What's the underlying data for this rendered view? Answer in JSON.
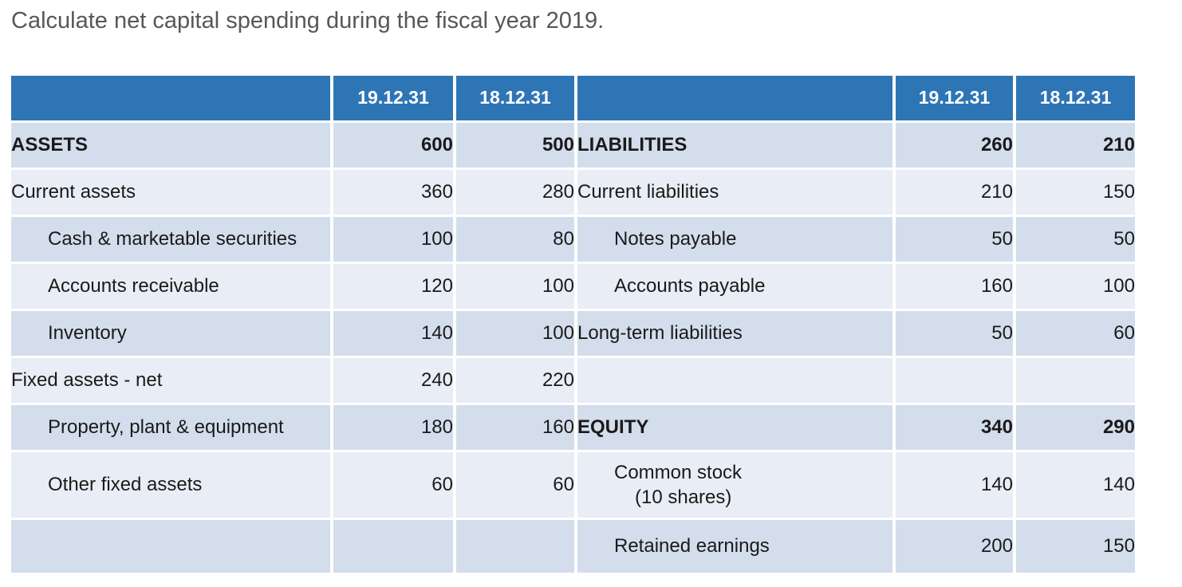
{
  "page": {
    "title": "Calculate net capital spending during the fiscal year 2019."
  },
  "colors": {
    "header_bg": "#2E75B6",
    "band_dark": "#D3DDEC",
    "band_light": "#E9EDF5",
    "header_text": "#FFFFFF",
    "body_text": "#1A1A1A",
    "title_text": "#56575A",
    "grid_border": "#FFFFFF"
  },
  "balance_sheet": {
    "column_headers": [
      "",
      "19.12.31",
      "18.12.31",
      "",
      "19.12.31",
      "18.12.31"
    ],
    "rows": [
      {
        "band": "dark",
        "size": "normal",
        "left": {
          "label": "ASSETS",
          "bold": true,
          "indent": 0,
          "values": [
            "600",
            "500"
          ]
        },
        "right": {
          "label": "LIABILITIES",
          "bold": true,
          "indent": 0,
          "values": [
            "260",
            "210"
          ]
        }
      },
      {
        "band": "light",
        "size": "normal",
        "left": {
          "label": "Current assets",
          "bold": false,
          "indent": 0,
          "values": [
            "360",
            "280"
          ]
        },
        "right": {
          "label": "Current liabilities",
          "bold": false,
          "indent": 0,
          "values": [
            "210",
            "150"
          ]
        }
      },
      {
        "band": "dark",
        "size": "normal",
        "left": {
          "label": "Cash & marketable securities",
          "bold": false,
          "indent": 1,
          "values": [
            "100",
            "80"
          ]
        },
        "right": {
          "label": "Notes payable",
          "bold": false,
          "indent": 1,
          "values": [
            "50",
            "50"
          ]
        }
      },
      {
        "band": "light",
        "size": "normal",
        "left": {
          "label": "Accounts receivable",
          "bold": false,
          "indent": 1,
          "values": [
            "120",
            "100"
          ]
        },
        "right": {
          "label": "Accounts payable",
          "bold": false,
          "indent": 1,
          "values": [
            "160",
            "100"
          ]
        }
      },
      {
        "band": "dark",
        "size": "normal",
        "left": {
          "label": "Inventory",
          "bold": false,
          "indent": 1,
          "values": [
            "140",
            "100"
          ]
        },
        "right": {
          "label": "Long-term liabilities",
          "bold": false,
          "indent": 0,
          "values": [
            "50",
            "60"
          ]
        }
      },
      {
        "band": "light",
        "size": "normal",
        "left": {
          "label": "Fixed assets - net",
          "bold": false,
          "indent": 0,
          "values": [
            "240",
            "220"
          ]
        },
        "right": {
          "label": "",
          "bold": false,
          "indent": 0,
          "values": [
            "",
            ""
          ]
        }
      },
      {
        "band": "dark",
        "size": "normal",
        "left": {
          "label": "Property, plant & equipment",
          "bold": false,
          "indent": 1,
          "values": [
            "180",
            "160"
          ]
        },
        "right": {
          "label": "EQUITY",
          "bold": true,
          "indent": 0,
          "values": [
            "340",
            "290"
          ]
        }
      },
      {
        "band": "light",
        "size": "tall",
        "left": {
          "label": "Other fixed assets",
          "bold": false,
          "indent": 1,
          "values": [
            "60",
            "60"
          ]
        },
        "right": {
          "label": "Common stock",
          "label_line2": "(10 shares)",
          "bold": false,
          "indent": 1,
          "values": [
            "140",
            "140"
          ]
        }
      },
      {
        "band": "dark",
        "size": "medium",
        "left": {
          "label": "",
          "bold": false,
          "indent": 0,
          "values": [
            "",
            ""
          ]
        },
        "right": {
          "label": "Retained earnings",
          "bold": false,
          "indent": 1,
          "values": [
            "200",
            "150"
          ]
        }
      }
    ]
  }
}
